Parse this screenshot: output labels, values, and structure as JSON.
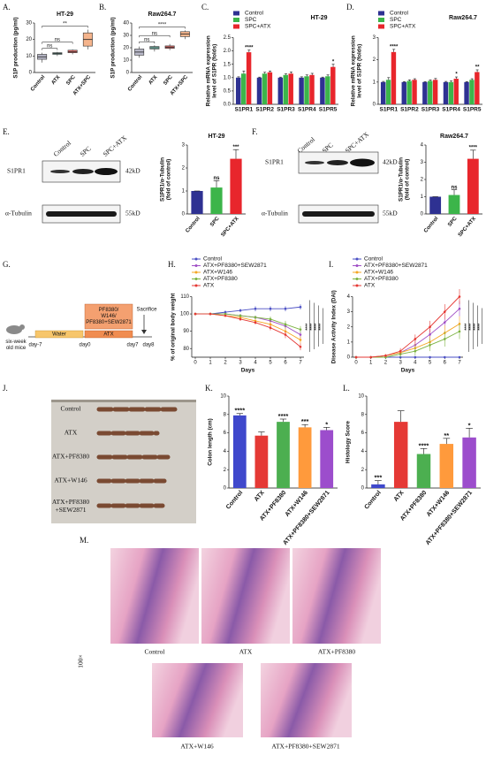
{
  "panel_labels": [
    "A.",
    "B.",
    "C.",
    "D.",
    "E.",
    "F.",
    "G.",
    "H.",
    "I.",
    "J.",
    "K.",
    "L.",
    "M."
  ],
  "blots": [
    {
      "lanes": [
        "Control",
        "SPC",
        "SPC+ATX"
      ],
      "proteins": [
        "S1PR1",
        "α-Tubulin"
      ],
      "sizes": [
        "42kD",
        "55kD"
      ]
    },
    {
      "lanes": [
        "Control",
        "SPC",
        "SPC+ATX"
      ],
      "proteins": [
        "S1PR1",
        "α-Tubulin"
      ],
      "sizes": [
        "42kD",
        "55kD"
      ]
    }
  ],
  "diagram": {
    "subject": [
      "six-week",
      "old mice"
    ],
    "phases": [
      "Water",
      "ATX"
    ],
    "treatment": [
      "PF8380/",
      "W146/",
      "PF8380+SEW2871"
    ],
    "endpoint": "Sacrifice",
    "days": [
      "day-7",
      "day0",
      "day7",
      "day8"
    ]
  },
  "photo": {
    "labels": [
      "Control",
      "ATX",
      "ATX+PF8380",
      "ATX+W146"
    ],
    "last_label": [
      "ATX+PF8380",
      "+SEW2871"
    ]
  },
  "histology": {
    "magnification": "100×",
    "labels": [
      "Control",
      "ATX",
      "ATX+PF8380",
      "ATX+W146",
      "ATX+PF8380+SEW2871"
    ]
  },
  "chart_data": [
    {
      "type": "box",
      "title": "HT-29",
      "ylabel": "S1P production (pg/ml)",
      "categories": [
        "Control",
        "ATX",
        "SPC",
        "ATX+SPC"
      ],
      "boxes": [
        {
          "min": 6,
          "q1": 8,
          "median": 9.5,
          "q3": 11,
          "max": 12
        },
        {
          "min": 10,
          "q1": 11,
          "median": 11.5,
          "q3": 12,
          "max": 12.5
        },
        {
          "min": 11,
          "q1": 12,
          "median": 12.5,
          "q3": 13.5,
          "max": 14
        },
        {
          "min": 14,
          "q1": 16,
          "median": 20,
          "q3": 24,
          "max": 26
        }
      ],
      "colors": [
        "#b8b8c8",
        "#7fc7b8",
        "#e8706c",
        "#f5b48c"
      ],
      "ylim": [
        0,
        30
      ],
      "yticks": [
        0,
        10,
        20,
        30
      ],
      "brackets": [
        {
          "text": "ns",
          "from": 0,
          "to": 1
        },
        {
          "text": "ns",
          "from": 0,
          "to": 2
        },
        {
          "text": "**",
          "from": 0,
          "to": 3
        }
      ]
    },
    {
      "type": "box",
      "title": "Raw264.7",
      "ylabel": "S1P production (pg/ml)",
      "categories": [
        "Control",
        "ATX",
        "SPC",
        "ATX+SPC"
      ],
      "boxes": [
        {
          "min": 12,
          "q1": 14,
          "median": 16.5,
          "q3": 19,
          "max": 21
        },
        {
          "min": 17,
          "q1": 19,
          "median": 20,
          "q3": 21,
          "max": 22
        },
        {
          "min": 18,
          "q1": 19.5,
          "median": 20.5,
          "q3": 21.5,
          "max": 23
        },
        {
          "min": 27,
          "q1": 29,
          "median": 31,
          "q3": 33,
          "max": 34
        }
      ],
      "colors": [
        "#b8b8c8",
        "#7fc7b8",
        "#e8706c",
        "#f5b48c"
      ],
      "ylim": [
        0,
        40
      ],
      "yticks": [
        0,
        10,
        20,
        30,
        40
      ],
      "brackets": [
        {
          "text": "ns",
          "from": 0,
          "to": 1
        },
        {
          "text": "ns",
          "from": 0,
          "to": 2
        },
        {
          "text": "****",
          "from": 0,
          "to": 3
        }
      ]
    },
    {
      "type": "bar",
      "title": "HT-29",
      "ylabel": [
        "Relative mRNA expression",
        "level of S1PR (folds)"
      ],
      "categories": [
        "S1PR1",
        "S1PR2",
        "S1PR3",
        "S1PR4",
        "S1PR5"
      ],
      "legend": "top-left",
      "series": [
        {
          "name": "Control",
          "color": "#2e3192",
          "values": [
            1,
            1,
            1,
            1,
            1
          ],
          "errors": [
            0.03,
            0.02,
            0.02,
            0.03,
            0.02
          ]
        },
        {
          "name": "SPC",
          "color": "#3cb54a",
          "values": [
            1.15,
            1.15,
            1.1,
            1.05,
            1.05
          ],
          "errors": [
            0.1,
            0.05,
            0.04,
            0.05,
            0.05
          ]
        },
        {
          "name": "SPC+ATX",
          "color": "#e8262c",
          "values": [
            1.95,
            1.2,
            1.15,
            1.1,
            1.4
          ],
          "errors": [
            0.08,
            0.05,
            0.06,
            0.06,
            0.1
          ]
        }
      ],
      "ylim": [
        0,
        2.5
      ],
      "yticks": [
        {
          "value": 0,
          "label": "0.0"
        },
        0.5,
        {
          "value": 1,
          "label": "1.0"
        },
        1.5,
        {
          "value": 2,
          "label": "2.0"
        },
        2.5
      ],
      "annotations": [
        {
          "text": "****",
          "category": 0,
          "series": 2
        },
        {
          "text": "*",
          "category": 4,
          "series": 2
        }
      ]
    },
    {
      "type": "bar",
      "title": "Raw264.7",
      "ylabel": [
        "Relative mRNA expression",
        "level of S1PR (folds)"
      ],
      "categories": [
        "S1PR1",
        "S1PR2",
        "S1PR3",
        "S1PR4",
        "S1PR5"
      ],
      "legend": "top-left",
      "series": [
        {
          "name": "Control",
          "color": "#2e3192",
          "values": [
            1,
            1,
            1,
            1,
            1
          ],
          "errors": [
            0.03,
            0.02,
            0.02,
            0.03,
            0.02
          ]
        },
        {
          "name": "SPC",
          "color": "#3cb54a",
          "values": [
            1.1,
            1.05,
            1.05,
            1,
            1.1
          ],
          "errors": [
            0.1,
            0.05,
            0.05,
            0.05,
            0.05
          ]
        },
        {
          "name": "SPC+ATX",
          "color": "#e8262c",
          "values": [
            2.35,
            1.1,
            1.1,
            1.15,
            1.45
          ],
          "errors": [
            0.12,
            0.05,
            0.06,
            0.08,
            0.1
          ]
        }
      ],
      "ylim": [
        0,
        3
      ],
      "yticks": [
        0,
        1,
        2,
        3
      ],
      "annotations": [
        {
          "text": "****",
          "category": 0,
          "series": 2
        },
        {
          "text": "*",
          "category": 3,
          "series": 2
        },
        {
          "text": "**",
          "category": 4,
          "series": 2
        }
      ]
    },
    {
      "type": "bar",
      "title": "HT-29",
      "ylabel": [
        "S1PR1/α-Tubulin",
        "(fold of control)"
      ],
      "categories": [
        "Control",
        "SPC",
        "SPC+ATX"
      ],
      "values": [
        1,
        1.15,
        2.4
      ],
      "errors": [
        0,
        0.3,
        0.4
      ],
      "colors": [
        "#2e3192",
        "#3cb54a",
        "#e8262c"
      ],
      "ylim": [
        0,
        3
      ],
      "yticks": [
        0,
        1,
        2,
        3
      ],
      "annotations": [
        {
          "text": "ns",
          "category": 1
        },
        {
          "text": "***",
          "category": 2
        }
      ]
    },
    {
      "type": "bar",
      "title": "Raw264.7",
      "ylabel": [
        "S1PR1/α-Tubulin",
        "(fold of control)"
      ],
      "categories": [
        "Control",
        "SPC",
        "SPC+ATX"
      ],
      "values": [
        1,
        1.1,
        3.2
      ],
      "errors": [
        0,
        0.3,
        0.5
      ],
      "colors": [
        "#2e3192",
        "#3cb54a",
        "#e8262c"
      ],
      "ylim": [
        0,
        4
      ],
      "yticks": [
        0,
        1,
        2,
        3,
        4
      ],
      "annotations": [
        {
          "text": "ns",
          "category": 1
        },
        {
          "text": "****",
          "category": 2
        }
      ]
    },
    {
      "type": "line",
      "ylabel": "% of original body weight",
      "xlabel": "Days",
      "legend": "top-left",
      "x": [
        0,
        1,
        2,
        3,
        4,
        5,
        6,
        7
      ],
      "xlim": [
        0,
        7
      ],
      "xticks": [
        0,
        1,
        2,
        3,
        4,
        5,
        6,
        7
      ],
      "ylim": [
        75,
        110
      ],
      "yticks": [
        80,
        90,
        100,
        110
      ],
      "series": [
        {
          "name": "Control",
          "color": "#4a4fc4",
          "values": [
            100,
            100,
            101,
            102,
            103,
            103,
            103,
            104
          ],
          "errors": [
            0,
            0.5,
            1,
            1,
            1.5,
            1.5,
            1.5,
            1.5
          ]
        },
        {
          "name": "ATX+PF8380+SEW2871",
          "color": "#a04fc6",
          "values": [
            100,
            100,
            100,
            99,
            98,
            96,
            93,
            88
          ],
          "errors": [
            0,
            0.5,
            0.5,
            1,
            1,
            1.5,
            2,
            2
          ]
        },
        {
          "name": "ATX+W146",
          "color": "#f5a623",
          "values": [
            100,
            100,
            99,
            98,
            96,
            94,
            90,
            85
          ],
          "errors": [
            0,
            0.5,
            0.5,
            1,
            1,
            1.5,
            2,
            2
          ]
        },
        {
          "name": "ATX+PF8380",
          "color": "#7cb342",
          "values": [
            100,
            100,
            100,
            99,
            98,
            97,
            94,
            91
          ],
          "errors": [
            0,
            0.5,
            0.5,
            1,
            1,
            1.5,
            2,
            2
          ]
        },
        {
          "name": "ATX",
          "color": "#e53935",
          "values": [
            100,
            100,
            99,
            97,
            95,
            92,
            88,
            81
          ],
          "errors": [
            0,
            0.5,
            0.5,
            1,
            1,
            1.5,
            2,
            2
          ]
        }
      ],
      "annotations": [
        "****",
        "****",
        "****",
        "****"
      ]
    },
    {
      "type": "line",
      "ylabel": "Disease Activity Index (DAI)",
      "xlabel": "Days",
      "legend": "top-left",
      "x": [
        0,
        1,
        2,
        3,
        4,
        5,
        6,
        7
      ],
      "xlim": [
        0,
        7
      ],
      "xticks": [
        0,
        1,
        2,
        3,
        4,
        5,
        6,
        7
      ],
      "ylim": [
        0,
        4
      ],
      "yticks": [
        0,
        1,
        2,
        3,
        4
      ],
      "series": [
        {
          "name": "Control",
          "color": "#4a4fc4",
          "values": [
            0,
            0,
            0,
            0,
            0,
            0,
            0,
            0
          ],
          "errors": [
            0,
            0,
            0,
            0,
            0,
            0,
            0,
            0
          ]
        },
        {
          "name": "ATX+PF8380+SEW2871",
          "color": "#a04fc6",
          "values": [
            0,
            0,
            0.1,
            0.3,
            0.8,
            1.5,
            2.3,
            3.2
          ],
          "errors": [
            0,
            0,
            0.1,
            0.2,
            0.3,
            0.4,
            0.5,
            0.5
          ]
        },
        {
          "name": "ATX+W146",
          "color": "#f5a623",
          "values": [
            0,
            0,
            0.1,
            0.3,
            0.6,
            1,
            1.6,
            2.2
          ],
          "errors": [
            0,
            0,
            0.1,
            0.2,
            0.3,
            0.4,
            0.5,
            0.5
          ]
        },
        {
          "name": "ATX+PF8380",
          "color": "#7cb342",
          "values": [
            0,
            0,
            0,
            0.2,
            0.4,
            0.8,
            1.2,
            1.7
          ],
          "errors": [
            0,
            0,
            0.1,
            0.2,
            0.3,
            0.4,
            0.5,
            0.5
          ]
        },
        {
          "name": "ATX",
          "color": "#e53935",
          "values": [
            0,
            0,
            0.1,
            0.4,
            1.2,
            2,
            3,
            4
          ],
          "errors": [
            0,
            0,
            0.1,
            0.2,
            0.3,
            0.4,
            0.5,
            0.5
          ]
        }
      ],
      "annotations": [
        "****",
        "****",
        "****",
        "****"
      ]
    },
    {
      "type": "bar",
      "ylabel": "Colon length (cm)",
      "categories": [
        "Control",
        "ATX",
        "ATX+PF8380",
        "ATX+W146",
        "ATX+PF8380+SEW2871"
      ],
      "values": [
        7.9,
        5.7,
        7.2,
        6.6,
        6.3
      ],
      "errors": [
        0.2,
        0.4,
        0.3,
        0.3,
        0.3
      ],
      "colors": [
        "#3f48cc",
        "#e53935",
        "#4caf50",
        "#ff9a3c",
        "#9c4dcc"
      ],
      "ylim": [
        0,
        10
      ],
      "yticks": [
        0,
        2,
        4,
        6,
        8,
        10
      ],
      "annotations": [
        {
          "text": "****",
          "category": 0
        },
        {
          "text": "****",
          "category": 2
        },
        {
          "text": "***",
          "category": 3
        },
        {
          "text": "*",
          "category": 4
        }
      ]
    },
    {
      "type": "bar",
      "ylabel": "Histology Score",
      "categories": [
        "Control",
        "ATX",
        "ATX+PF8380",
        "ATX+W146",
        "ATX+PF8380+SEW2871"
      ],
      "values": [
        0.4,
        7.2,
        3.7,
        4.8,
        5.5
      ],
      "errors": [
        0.4,
        1.2,
        0.6,
        0.6,
        1
      ],
      "colors": [
        "#3f48cc",
        "#e53935",
        "#4caf50",
        "#ff9a3c",
        "#9c4dcc"
      ],
      "ylim": [
        0,
        10
      ],
      "yticks": [
        0,
        2,
        4,
        6,
        8,
        10
      ],
      "annotations": [
        {
          "text": "***",
          "category": 0
        },
        {
          "text": "****",
          "category": 2
        },
        {
          "text": "**",
          "category": 3
        },
        {
          "text": "*",
          "category": 4
        }
      ]
    }
  ]
}
